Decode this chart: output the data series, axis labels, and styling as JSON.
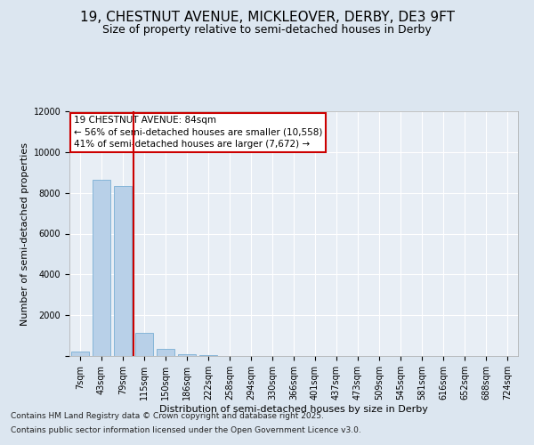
{
  "title_line1": "19, CHESTNUT AVENUE, MICKLEOVER, DERBY, DE3 9FT",
  "title_line2": "Size of property relative to semi-detached houses in Derby",
  "xlabel": "Distribution of semi-detached houses by size in Derby",
  "ylabel": "Number of semi-detached properties",
  "categories": [
    "7sqm",
    "43sqm",
    "79sqm",
    "115sqm",
    "150sqm",
    "186sqm",
    "222sqm",
    "258sqm",
    "294sqm",
    "330sqm",
    "366sqm",
    "401sqm",
    "437sqm",
    "473sqm",
    "509sqm",
    "545sqm",
    "581sqm",
    "616sqm",
    "652sqm",
    "688sqm",
    "724sqm"
  ],
  "values": [
    200,
    8650,
    8350,
    1150,
    330,
    100,
    50,
    0,
    0,
    0,
    0,
    0,
    0,
    0,
    0,
    0,
    0,
    0,
    0,
    0,
    0
  ],
  "bar_color": "#b8d0e8",
  "bar_edge_color": "#7aafd4",
  "vline_color": "#cc0000",
  "vline_x": 2.5,
  "annotation_title": "19 CHESTNUT AVENUE: 84sqm",
  "annotation_line1": "← 56% of semi-detached houses are smaller (10,558)",
  "annotation_line2": "41% of semi-detached houses are larger (7,672) →",
  "annotation_box_facecolor": "#ffffff",
  "annotation_box_edgecolor": "#cc0000",
  "ylim": [
    0,
    12000
  ],
  "yticks": [
    0,
    2000,
    4000,
    6000,
    8000,
    10000,
    12000
  ],
  "background_color": "#dce6f0",
  "plot_bg_color": "#e8eef5",
  "grid_color": "#ffffff",
  "footer_line1": "Contains HM Land Registry data © Crown copyright and database right 2025.",
  "footer_line2": "Contains public sector information licensed under the Open Government Licence v3.0.",
  "title_fontsize": 11,
  "subtitle_fontsize": 9,
  "axis_label_fontsize": 8,
  "tick_fontsize": 7,
  "annotation_fontsize": 7.5,
  "footer_fontsize": 6.5
}
